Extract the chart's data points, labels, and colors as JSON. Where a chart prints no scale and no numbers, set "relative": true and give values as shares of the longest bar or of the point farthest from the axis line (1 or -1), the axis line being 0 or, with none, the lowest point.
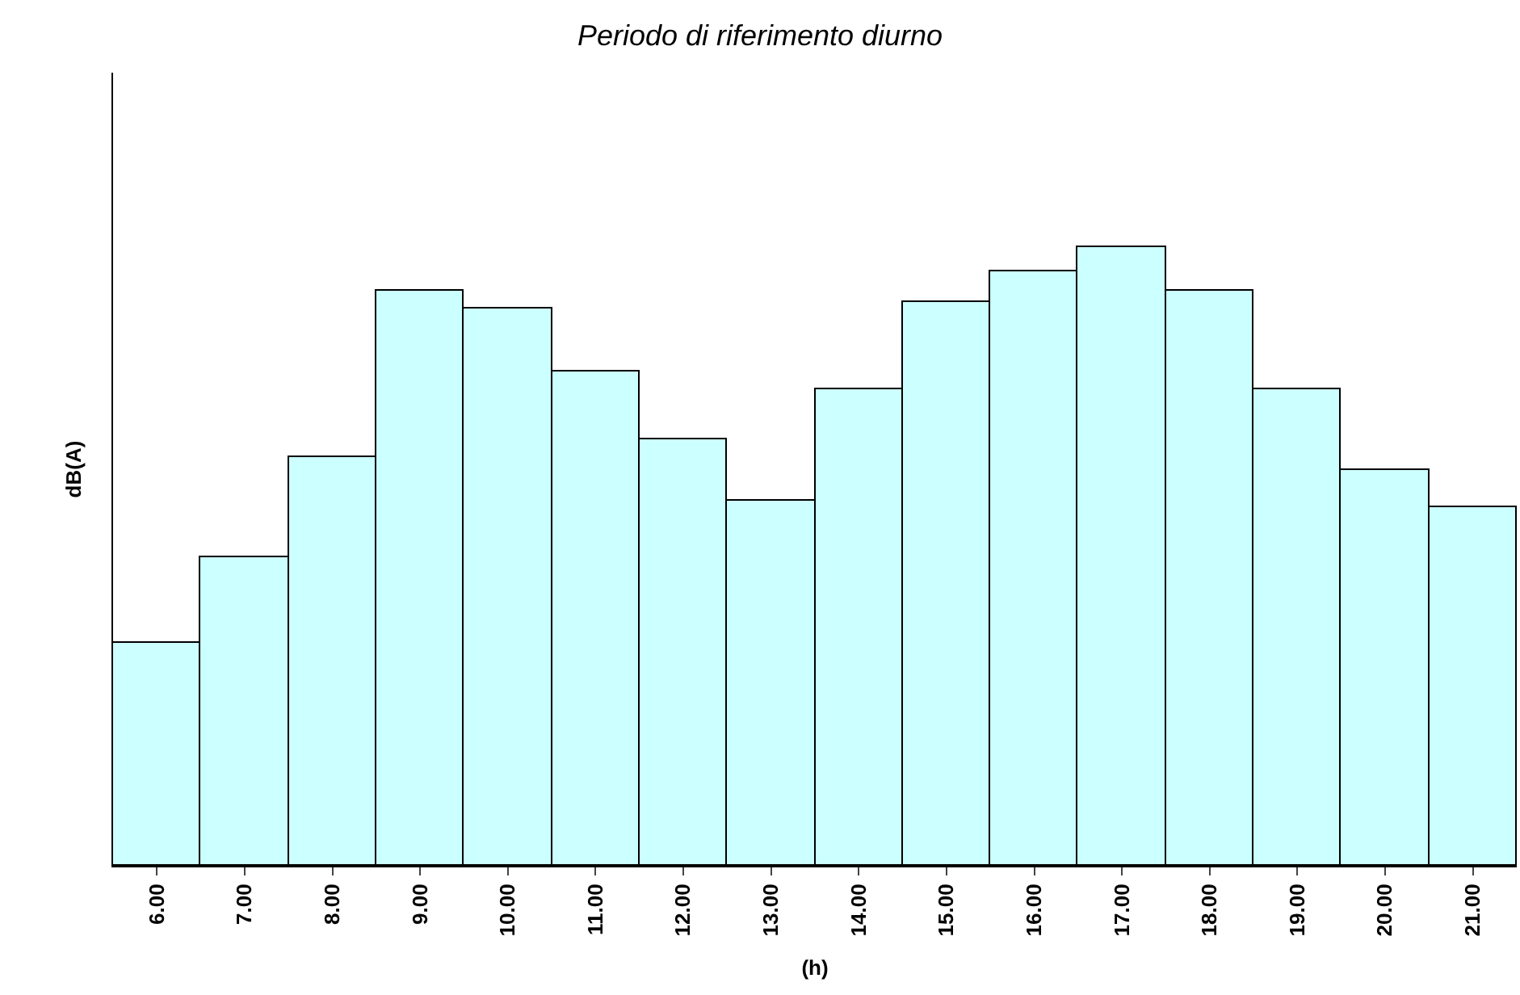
{
  "chart_data": {
    "type": "bar",
    "title": "Periodo di riferimento diurno",
    "xlabel": "(h)",
    "ylabel": "dB(A)",
    "relative": true,
    "categories": [
      "6.00",
      "7.00",
      "8.00",
      "9.00",
      "10.00",
      "11.00",
      "12.00",
      "13.00",
      "14.00",
      "15.00",
      "16.00",
      "17.00",
      "18.00",
      "19.00",
      "20.00",
      "21.00"
    ],
    "values": [
      0.36,
      0.5,
      0.66,
      0.93,
      0.9,
      0.8,
      0.69,
      0.59,
      0.77,
      0.91,
      0.96,
      1,
      0.93,
      0.77,
      0.64,
      0.58
    ],
    "color": "#ccffff"
  }
}
